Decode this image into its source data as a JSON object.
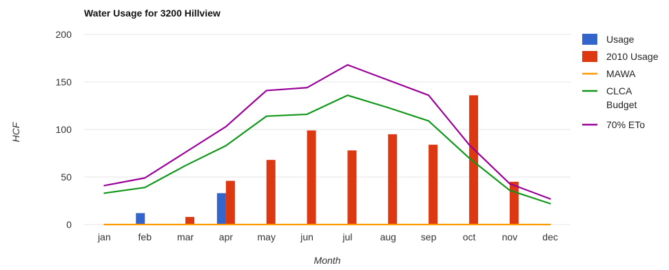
{
  "chart_data": {
    "type": "bar",
    "title": "Water Usage for 3200 Hillview",
    "xlabel": "Month",
    "ylabel": "HCF",
    "ylim": [
      0,
      200
    ],
    "yticks": [
      0,
      50,
      100,
      150,
      200
    ],
    "grid": true,
    "legend_position": "right",
    "categories": [
      "jan",
      "feb",
      "mar",
      "apr",
      "may",
      "jun",
      "jul",
      "aug",
      "sep",
      "oct",
      "nov",
      "dec"
    ],
    "bar_series": [
      {
        "name": "Usage",
        "color": "#3366cc",
        "values": [
          0,
          12,
          0,
          33,
          0,
          0,
          0,
          0,
          0,
          0,
          0,
          0
        ]
      },
      {
        "name": "2010 Usage",
        "color": "#dc3912",
        "values": [
          0,
          0,
          8,
          46,
          68,
          99,
          78,
          95,
          84,
          136,
          45,
          0
        ]
      }
    ],
    "line_series": [
      {
        "name": "MAWA",
        "color": "#ff9900",
        "values": [
          0,
          0,
          0,
          0,
          0,
          0,
          0,
          0,
          0,
          0,
          0,
          0
        ]
      },
      {
        "name": "CLCA Budget",
        "color": "#109618",
        "values": [
          33,
          39,
          62,
          83,
          114,
          116,
          136,
          123,
          109,
          70,
          36,
          22
        ]
      },
      {
        "name": "70% ETo",
        "color": "#990099",
        "values": [
          41,
          49,
          76,
          103,
          141,
          144,
          168,
          152,
          136,
          84,
          43,
          27
        ]
      }
    ],
    "legend": [
      {
        "label_lines": [
          "Usage"
        ],
        "kind": "bar",
        "color": "#3366cc"
      },
      {
        "label_lines": [
          "2010 Usage"
        ],
        "kind": "bar",
        "color": "#dc3912"
      },
      {
        "label_lines": [
          "MAWA"
        ],
        "kind": "line",
        "color": "#ff9900"
      },
      {
        "label_lines": [
          "CLCA",
          "Budget"
        ],
        "kind": "line",
        "color": "#109618"
      },
      {
        "label_lines": [
          "70% ETo"
        ],
        "kind": "line",
        "color": "#990099"
      }
    ]
  }
}
